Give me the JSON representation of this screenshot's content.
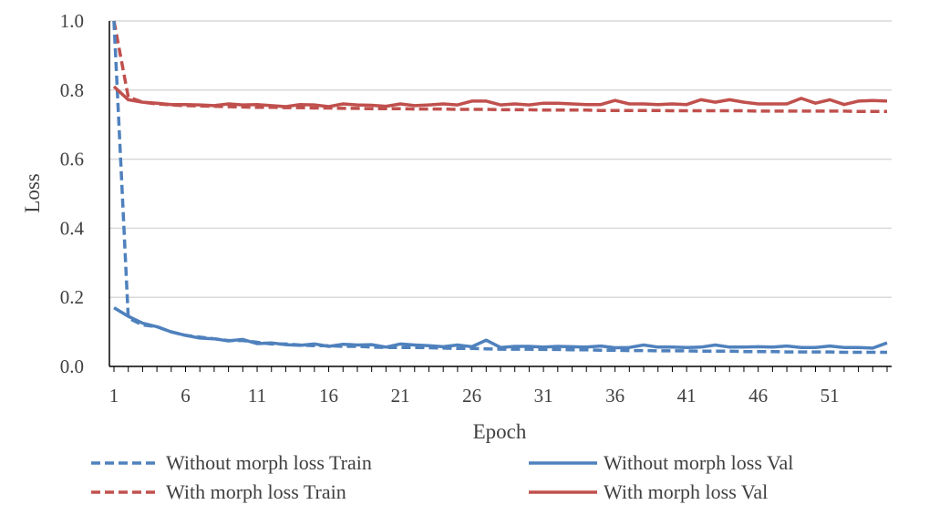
{
  "chart_data": {
    "type": "line",
    "xlabel": "Epoch",
    "ylabel": "Loss",
    "ylim": [
      0,
      1.0
    ],
    "yticks": [
      0.0,
      0.2,
      0.4,
      0.6,
      0.8,
      1.0
    ],
    "ytick_labels": [
      "0.0",
      "0.2",
      "0.4",
      "0.6",
      "0.8",
      "1.0"
    ],
    "xticks": [
      1,
      6,
      11,
      16,
      21,
      26,
      31,
      36,
      41,
      46,
      51
    ],
    "xtick_labels": [
      "1",
      "6",
      "11",
      "16",
      "21",
      "26",
      "31",
      "36",
      "41",
      "46",
      "51"
    ],
    "x": [
      1,
      2,
      3,
      4,
      5,
      6,
      7,
      8,
      9,
      10,
      11,
      12,
      13,
      14,
      15,
      16,
      17,
      18,
      19,
      20,
      21,
      22,
      23,
      24,
      25,
      26,
      27,
      28,
      29,
      30,
      31,
      32,
      33,
      34,
      35,
      36,
      37,
      38,
      39,
      40,
      41,
      42,
      43,
      44,
      45,
      46,
      47,
      48,
      49,
      50,
      51,
      52,
      53,
      54,
      55
    ],
    "grid": true,
    "legend": "bottom",
    "series": [
      {
        "name": "Without morph loss Train",
        "color": "#4f81bd",
        "style": "dashed",
        "values": [
          1.0,
          0.14,
          0.12,
          0.115,
          0.1,
          0.09,
          0.085,
          0.08,
          0.075,
          0.075,
          0.07,
          0.065,
          0.065,
          0.062,
          0.06,
          0.06,
          0.058,
          0.058,
          0.056,
          0.055,
          0.055,
          0.055,
          0.054,
          0.053,
          0.052,
          0.052,
          0.051,
          0.05,
          0.05,
          0.05,
          0.049,
          0.049,
          0.048,
          0.048,
          0.047,
          0.047,
          0.046,
          0.046,
          0.045,
          0.045,
          0.045,
          0.044,
          0.044,
          0.044,
          0.043,
          0.043,
          0.043,
          0.042,
          0.042,
          0.042,
          0.042,
          0.041,
          0.041,
          0.041,
          0.041
        ]
      },
      {
        "name": "Without morph loss Val",
        "color": "#4f81bd",
        "style": "solid",
        "values": [
          0.17,
          0.145,
          0.125,
          0.115,
          0.1,
          0.09,
          0.082,
          0.08,
          0.074,
          0.078,
          0.066,
          0.068,
          0.063,
          0.061,
          0.065,
          0.058,
          0.064,
          0.062,
          0.063,
          0.056,
          0.065,
          0.062,
          0.06,
          0.057,
          0.062,
          0.057,
          0.076,
          0.055,
          0.058,
          0.058,
          0.056,
          0.058,
          0.057,
          0.056,
          0.059,
          0.054,
          0.055,
          0.062,
          0.056,
          0.056,
          0.055,
          0.056,
          0.062,
          0.056,
          0.056,
          0.057,
          0.056,
          0.059,
          0.055,
          0.055,
          0.059,
          0.055,
          0.055,
          0.053,
          0.068
        ]
      },
      {
        "name": "With morph loss Train",
        "color": "#c0504d",
        "style": "dashed",
        "values": [
          1.0,
          0.78,
          0.765,
          0.76,
          0.757,
          0.755,
          0.754,
          0.753,
          0.752,
          0.751,
          0.75,
          0.75,
          0.749,
          0.749,
          0.748,
          0.748,
          0.747,
          0.747,
          0.746,
          0.746,
          0.746,
          0.745,
          0.745,
          0.745,
          0.744,
          0.744,
          0.744,
          0.743,
          0.743,
          0.743,
          0.742,
          0.742,
          0.742,
          0.742,
          0.741,
          0.741,
          0.741,
          0.741,
          0.741,
          0.74,
          0.74,
          0.74,
          0.74,
          0.74,
          0.74,
          0.739,
          0.739,
          0.739,
          0.739,
          0.739,
          0.739,
          0.739,
          0.738,
          0.738,
          0.738
        ]
      },
      {
        "name": "With morph loss Val",
        "color": "#c0504d",
        "style": "solid",
        "values": [
          0.81,
          0.772,
          0.765,
          0.762,
          0.758,
          0.758,
          0.757,
          0.755,
          0.76,
          0.757,
          0.758,
          0.755,
          0.752,
          0.758,
          0.757,
          0.752,
          0.76,
          0.757,
          0.756,
          0.753,
          0.76,
          0.755,
          0.757,
          0.76,
          0.757,
          0.768,
          0.768,
          0.757,
          0.76,
          0.757,
          0.762,
          0.762,
          0.76,
          0.758,
          0.758,
          0.77,
          0.76,
          0.76,
          0.758,
          0.76,
          0.758,
          0.772,
          0.765,
          0.772,
          0.765,
          0.76,
          0.76,
          0.76,
          0.776,
          0.762,
          0.772,
          0.758,
          0.768,
          0.77,
          0.768
        ]
      }
    ]
  }
}
